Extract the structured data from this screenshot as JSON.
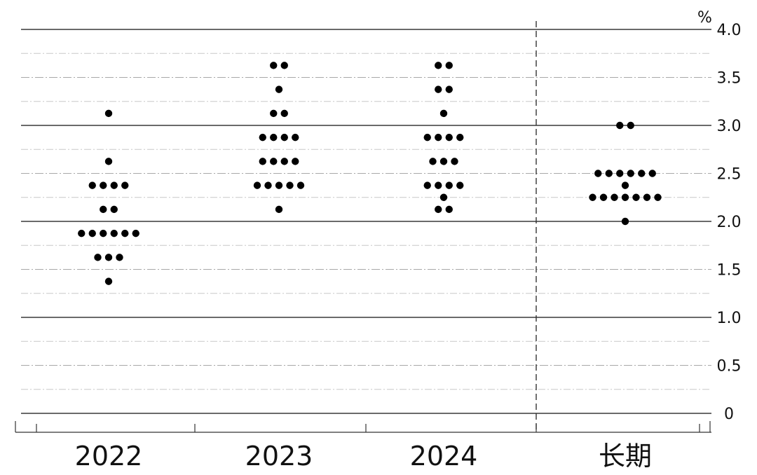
{
  "chart_data": {
    "type": "scatter",
    "categories": [
      "2022",
      "2023",
      "2024",
      "长期"
    ],
    "y_unit": "%",
    "ylim": [
      0,
      4.0
    ],
    "y_ticks": [
      "0",
      "0.5",
      "1.0",
      "1.5",
      "2.0",
      "2.5",
      "3.0",
      "3.5",
      "4.0"
    ],
    "grid": true,
    "series": [
      {
        "values_by_category": [
          [
            1.375,
            1.625,
            1.625,
            1.625,
            1.875,
            1.875,
            1.875,
            1.875,
            1.875,
            1.875,
            2.125,
            2.125,
            2.375,
            2.375,
            2.375,
            2.375,
            2.625,
            3.125
          ],
          [
            2.125,
            2.375,
            2.375,
            2.375,
            2.375,
            2.375,
            2.625,
            2.625,
            2.625,
            2.625,
            2.875,
            2.875,
            2.875,
            2.875,
            3.125,
            3.125,
            3.375,
            3.625,
            3.625
          ],
          [
            2.125,
            2.125,
            2.25,
            2.375,
            2.375,
            2.375,
            2.375,
            2.625,
            2.625,
            2.625,
            2.875,
            2.875,
            2.875,
            2.875,
            3.125,
            3.375,
            3.375,
            3.625,
            3.625
          ],
          [
            2.0,
            2.25,
            2.25,
            2.25,
            2.25,
            2.25,
            2.25,
            2.25,
            2.375,
            2.5,
            2.5,
            2.5,
            2.5,
            2.5,
            2.5,
            3.0,
            3.0
          ]
        ]
      }
    ]
  }
}
